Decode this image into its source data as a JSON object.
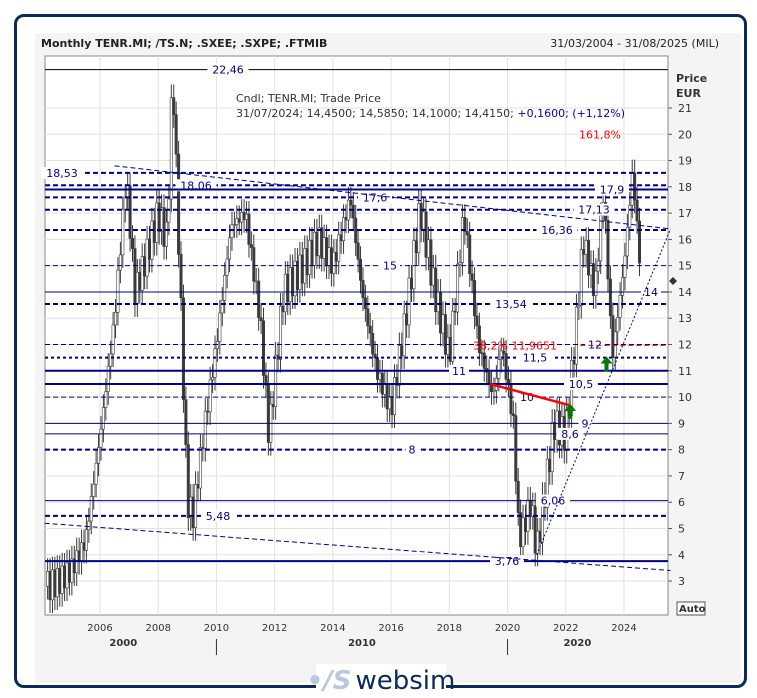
{
  "header": {
    "title": "Monthly TENR.MI; /TS.N; .SXEE; .SXPE; .FTMIB",
    "range": "31/03/2004 - 31/08/2025 (MIL)"
  },
  "branding": {
    "logo": "websim"
  },
  "chart_data": {
    "type": "candlestick",
    "legend_line1": "Cndl; TENR.MI; Trade Price",
    "legend_line2_values": "31/07/2024; 14,4500; 14,5850; 14,1000; 14,4150;",
    "legend_line2_change": "+0,1600; (+1,12%)",
    "ylabel": [
      "Price",
      "EUR"
    ],
    "ylim": [
      2.2,
      23
    ],
    "xlim": [
      2004.1,
      2025.6
    ],
    "yticks": [
      3,
      4,
      5,
      6,
      7,
      8,
      9,
      10,
      11,
      12,
      13,
      14,
      15,
      16,
      17,
      18,
      19,
      20,
      21
    ],
    "xticks": [
      "2006",
      "2008",
      "2010",
      "2012",
      "2014",
      "2016",
      "2018",
      "2020",
      "2022",
      "2024"
    ],
    "decades": [
      "2000",
      "2010",
      "2020"
    ],
    "auto_label": "Auto",
    "grid": true,
    "colors": {
      "price": "#3a3a3a",
      "levels": "#00008b",
      "fib": "#ff0000",
      "arrow": "#007a00"
    },
    "close_series": [
      [
        2004.2,
        2.8
      ],
      [
        2004.6,
        3.0
      ],
      [
        2005.0,
        3.4
      ],
      [
        2005.5,
        4.5
      ],
      [
        2006.0,
        8.5
      ],
      [
        2006.5,
        13
      ],
      [
        2006.9,
        18.4
      ],
      [
        2007.2,
        14
      ],
      [
        2007.5,
        15
      ],
      [
        2008.0,
        17
      ],
      [
        2008.3,
        16
      ],
      [
        2008.5,
        22.4
      ],
      [
        2008.7,
        16
      ],
      [
        2009.0,
        6
      ],
      [
        2009.2,
        5.5
      ],
      [
        2009.6,
        9
      ],
      [
        2010.0,
        12
      ],
      [
        2010.5,
        16.5
      ],
      [
        2011.0,
        17
      ],
      [
        2011.5,
        13
      ],
      [
        2011.8,
        8.5
      ],
      [
        2012.3,
        14
      ],
      [
        2013.0,
        15
      ],
      [
        2013.5,
        16
      ],
      [
        2014.0,
        15
      ],
      [
        2014.6,
        17.6
      ],
      [
        2015.0,
        14
      ],
      [
        2015.5,
        11
      ],
      [
        2016.0,
        9.5
      ],
      [
        2016.5,
        13
      ],
      [
        2017.0,
        17.2
      ],
      [
        2017.5,
        14
      ],
      [
        2018.0,
        11.5
      ],
      [
        2018.5,
        17
      ],
      [
        2019.0,
        12
      ],
      [
        2019.5,
        10
      ],
      [
        2019.8,
        12
      ],
      [
        2020.2,
        9
      ],
      [
        2020.4,
        4.5
      ],
      [
        2020.8,
        6
      ],
      [
        2021.0,
        4.1
      ],
      [
        2021.3,
        6.5
      ],
      [
        2021.6,
        9
      ],
      [
        2022.0,
        8.5
      ],
      [
        2022.3,
        12
      ],
      [
        2022.6,
        16
      ],
      [
        2023.0,
        14
      ],
      [
        2023.3,
        17.9
      ],
      [
        2023.6,
        11.5
      ],
      [
        2024.0,
        15
      ],
      [
        2024.3,
        18.6
      ],
      [
        2024.6,
        14.4
      ]
    ],
    "last_price": 14.415,
    "levels": [
      {
        "value": 22.46,
        "label": "22,46",
        "style": "solid-thin"
      },
      {
        "value": 18.53,
        "label": "18,53",
        "style": "dashed-thick"
      },
      {
        "value": 18.06,
        "label": "18,06",
        "style": "dashed-thick"
      },
      {
        "value": 17.9,
        "label": "17,9",
        "style": "solid-thick"
      },
      {
        "value": 17.6,
        "label": "17,6",
        "style": "dashed-thick"
      },
      {
        "value": 17.13,
        "label": "17,13",
        "style": "dashed-thick"
      },
      {
        "value": 16.36,
        "label": "16,36",
        "style": "dashed-thick"
      },
      {
        "value": 15,
        "label": "15",
        "style": "dashed-thin"
      },
      {
        "value": 14,
        "label": "14",
        "style": "solid-thin"
      },
      {
        "value": 13.54,
        "label": "13,54",
        "style": "dashed-thick"
      },
      {
        "value": 12,
        "label": "12",
        "style": "dashed-thin"
      },
      {
        "value": 11.5,
        "label": "11,5",
        "style": "dotted-thick"
      },
      {
        "value": 11,
        "label": "11",
        "style": "solid-thick"
      },
      {
        "value": 10.5,
        "label": "10,5",
        "style": "solid-thick"
      },
      {
        "value": 10,
        "label": "10",
        "style": "dashed-thin"
      },
      {
        "value": 9,
        "label": "9",
        "style": "solid-thin"
      },
      {
        "value": 8.6,
        "label": "8,6",
        "style": "solid-thin"
      },
      {
        "value": 8,
        "label": "8",
        "style": "dashed-thick"
      },
      {
        "value": 6.06,
        "label": "6,06",
        "style": "solid-thin"
      },
      {
        "value": 5.48,
        "label": "5,48",
        "style": "dashed-thick"
      },
      {
        "value": 3.76,
        "label": "3,76",
        "style": "solid-thick"
      }
    ],
    "fib_levels": [
      {
        "value": 11.9651,
        "label": "38,2% 11,9651"
      },
      {
        "value": 20,
        "label": "161,8%"
      }
    ],
    "trendlines": [
      {
        "from": [
          2006.5,
          18.8
        ],
        "to": [
          2025.6,
          16.4
        ],
        "style": "dashed"
      },
      {
        "from": [
          2004.1,
          5.2
        ],
        "to": [
          2025.6,
          3.4
        ],
        "style": "dashed"
      },
      {
        "from": [
          2021.0,
          4.0
        ],
        "to": [
          2025.6,
          16.4
        ],
        "style": "dotted"
      },
      {
        "from": [
          2019.4,
          10.5
        ],
        "to": [
          2022.1,
          9.7
        ],
        "style": "red"
      }
    ],
    "signals": [
      {
        "x": 2022.15,
        "y": 9.4,
        "type": "buy-arrow"
      },
      {
        "x": 2023.4,
        "y": 11.2,
        "type": "buy-arrow"
      }
    ]
  }
}
